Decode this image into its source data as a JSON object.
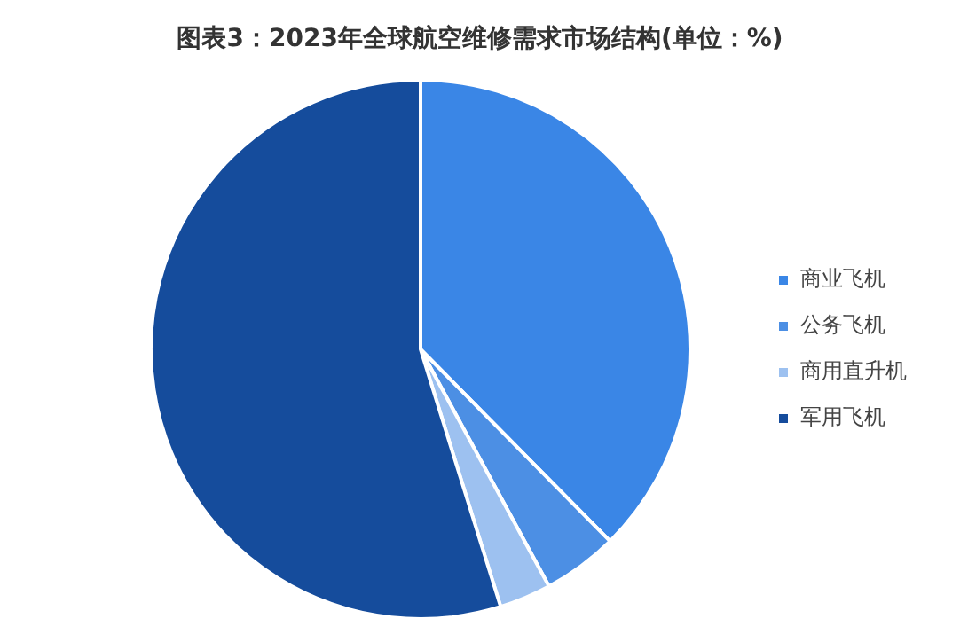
{
  "chart_data": {
    "type": "pie",
    "title": "图表3：2023年全球航空维修需求市场结构(单位：%)",
    "categories": [
      "商业飞机",
      "公务飞机",
      "商用直升机",
      "军用飞机"
    ],
    "values": [
      37.6,
      4.5,
      3.1,
      54.8
    ],
    "colors": [
      "#3a86e6",
      "#4c8fe4",
      "#9dc1f0",
      "#154c9c"
    ],
    "legend": "right"
  }
}
